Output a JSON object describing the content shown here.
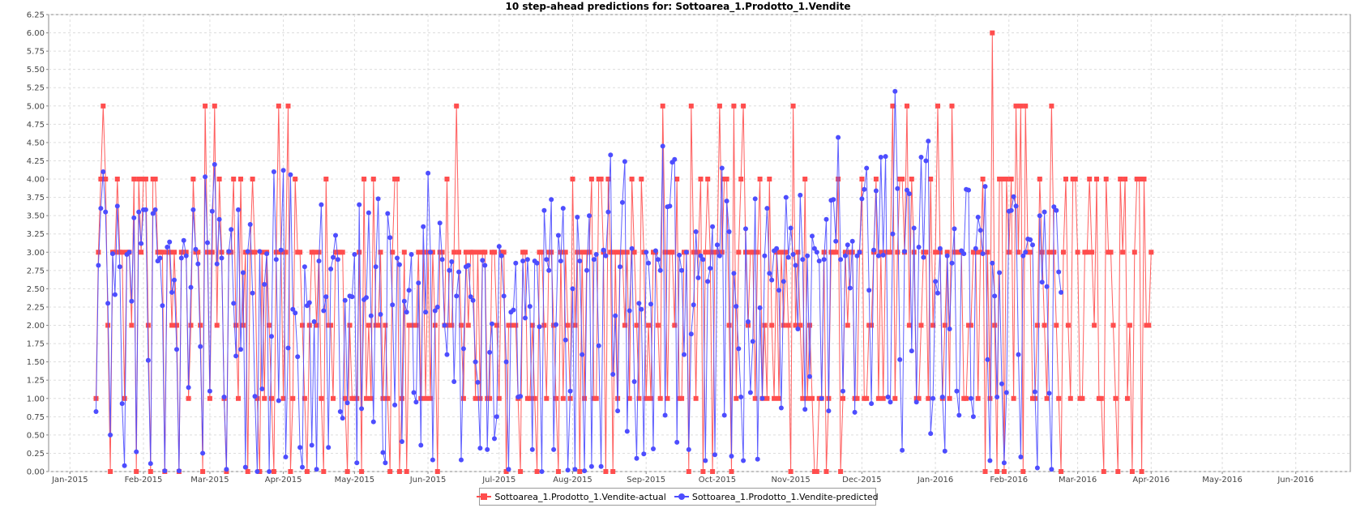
{
  "chart_data": {
    "type": "line",
    "title": "10 step-ahead predictions for: Sottoarea_1.Prodotto_1.Vendite",
    "xlabel": "",
    "ylabel": "",
    "x_start": "2015-01-12",
    "x_step_days": 1,
    "xlim": [
      "2014-12-23",
      "2016-06-24"
    ],
    "ylim": [
      0,
      6.25
    ],
    "y_ticks": [
      "0.00",
      "0.25",
      "0.50",
      "0.75",
      "1.00",
      "1.25",
      "1.50",
      "1.75",
      "2.00",
      "2.25",
      "2.50",
      "2.75",
      "3.00",
      "3.25",
      "3.50",
      "3.75",
      "4.00",
      "4.25",
      "4.50",
      "4.75",
      "5.00",
      "5.25",
      "5.50",
      "5.75",
      "6.00",
      "6.25"
    ],
    "x_ticks": [
      {
        "label": "Jan-2015",
        "date": "2015-01-01"
      },
      {
        "label": "Feb-2015",
        "date": "2015-02-01"
      },
      {
        "label": "Mar-2015",
        "date": "2015-03-01"
      },
      {
        "label": "Apr-2015",
        "date": "2015-04-01"
      },
      {
        "label": "May-2015",
        "date": "2015-05-01"
      },
      {
        "label": "Jun-2015",
        "date": "2015-06-01"
      },
      {
        "label": "Jul-2015",
        "date": "2015-07-01"
      },
      {
        "label": "Aug-2015",
        "date": "2015-08-01"
      },
      {
        "label": "Sep-2015",
        "date": "2015-09-01"
      },
      {
        "label": "Oct-2015",
        "date": "2015-10-01"
      },
      {
        "label": "Nov-2015",
        "date": "2015-11-01"
      },
      {
        "label": "Dec-2015",
        "date": "2015-12-01"
      },
      {
        "label": "Jan-2016",
        "date": "2016-01-01"
      },
      {
        "label": "Feb-2016",
        "date": "2016-02-01"
      },
      {
        "label": "Mar-2016",
        "date": "2016-03-01"
      },
      {
        "label": "Apr-2016",
        "date": "2016-04-01"
      },
      {
        "label": "May-2016",
        "date": "2016-05-01"
      },
      {
        "label": "Jun-2016",
        "date": "2016-06-01"
      }
    ],
    "grid": true,
    "legend_position": "bottom-center",
    "series": [
      {
        "name": "Sottoarea_1.Prodotto_1.Vendite-actual",
        "color": "#ff4d4d",
        "marker": "square",
        "values": [
          1,
          3,
          4,
          5,
          4,
          2,
          0,
          3,
          3,
          4,
          3,
          3,
          1,
          3,
          3,
          2,
          4,
          0,
          4,
          3,
          4,
          4,
          2,
          0,
          4,
          4,
          3,
          3,
          3,
          0,
          3,
          3,
          2,
          3,
          2,
          0,
          3,
          3,
          3,
          1,
          2,
          4,
          3,
          3,
          2,
          0,
          5,
          3,
          1,
          3,
          5,
          2,
          4,
          3,
          1,
          0,
          3,
          3,
          4,
          2,
          1,
          4,
          2,
          3,
          0,
          3,
          4,
          3,
          1,
          0,
          3,
          1,
          3,
          2,
          1,
          0,
          3,
          5,
          3,
          1,
          3,
          5,
          0,
          1,
          4,
          3,
          3,
          2,
          1,
          0,
          2,
          3,
          3,
          2,
          3,
          1,
          0,
          4,
          2,
          2,
          1,
          3,
          3,
          3,
          3,
          1,
          0,
          2,
          1,
          1,
          1,
          3,
          0,
          4,
          1,
          2,
          1,
          4,
          2,
          2,
          3,
          1,
          2,
          1,
          0,
          3,
          4,
          4,
          0,
          1,
          3,
          0,
          2,
          2,
          2,
          2,
          3,
          1,
          3,
          1,
          3,
          1,
          3,
          2,
          0,
          3,
          3,
          2,
          4,
          2,
          2,
          3,
          5,
          3,
          2,
          1,
          3,
          2,
          3,
          3,
          1,
          3,
          1,
          3,
          3,
          1,
          1,
          3,
          3,
          2,
          1,
          3,
          3,
          0,
          2,
          2,
          2,
          2,
          1,
          0,
          3,
          3,
          1,
          1,
          2,
          1,
          0,
          3,
          3,
          2,
          1,
          3,
          3,
          2,
          1,
          0,
          3,
          1,
          3,
          2,
          1,
          4,
          2,
          3,
          0,
          3,
          1,
          3,
          3,
          4,
          1,
          1,
          4,
          4,
          3,
          0,
          4,
          3,
          0,
          3,
          1,
          3,
          3,
          2,
          3,
          1,
          4,
          3,
          2,
          1,
          4,
          3,
          1,
          2,
          1,
          3,
          3,
          2,
          1,
          5,
          3,
          1,
          3,
          3,
          2,
          4,
          1,
          1,
          3,
          3,
          0,
          5,
          3,
          1,
          3,
          4,
          0,
          3,
          4,
          3,
          0,
          3,
          3,
          5,
          3,
          4,
          4,
          2,
          0,
          5,
          1,
          3,
          4,
          5,
          3,
          2,
          3,
          3,
          1,
          3,
          4,
          1,
          2,
          1,
          4,
          2,
          1,
          3,
          1,
          3,
          2,
          3,
          2,
          0,
          5,
          2,
          3,
          2,
          1,
          4,
          1,
          2,
          1,
          0,
          0,
          1,
          1,
          3,
          0,
          1,
          3,
          3,
          3,
          4,
          0,
          1,
          3,
          2,
          3,
          3,
          1,
          1,
          3,
          4,
          1,
          1,
          2,
          2,
          3,
          4,
          1,
          3,
          1,
          3,
          3,
          3,
          5,
          1,
          3,
          4,
          4,
          3,
          5,
          2,
          4,
          3,
          1,
          1,
          2,
          3,
          3,
          1,
          4,
          2,
          3,
          5,
          3,
          1,
          2,
          3,
          1,
          5,
          3,
          3,
          3,
          3,
          1,
          1,
          2,
          2,
          3,
          3,
          1,
          3,
          4,
          0,
          3,
          1,
          6,
          2,
          0,
          4,
          4,
          0,
          4,
          3,
          4,
          1,
          5,
          3,
          5,
          0,
          5,
          3,
          3,
          1,
          1,
          2,
          4,
          3,
          2,
          1,
          3,
          5,
          3,
          2,
          1,
          0,
          3,
          4,
          2,
          1,
          4,
          4,
          3,
          1,
          1,
          3,
          3,
          4,
          3,
          2,
          4,
          1,
          1,
          0,
          4,
          3,
          3,
          2,
          1,
          0,
          4,
          3,
          4,
          1,
          2,
          0,
          3,
          4,
          4,
          0,
          4,
          2,
          2,
          3
        ]
      },
      {
        "name": "Sottoarea_1.Prodotto_1.Vendite-predicted",
        "color": "#4d4dff",
        "marker": "circle",
        "values": [
          0.82,
          2.82,
          3.6,
          4.1,
          3.55,
          2.3,
          0.5,
          2.98,
          2.42,
          3.63,
          2.8,
          0.93,
          0.08,
          2.97,
          3.0,
          2.33,
          3.47,
          0.27,
          3.55,
          3.12,
          3.58,
          3.58,
          1.52,
          0.11,
          3.53,
          3.58,
          2.88,
          2.92,
          2.27,
          0.01,
          3.07,
          3.14,
          2.45,
          2.62,
          1.67,
          0.01,
          2.92,
          3.16,
          2.95,
          1.15,
          2.52,
          3.58,
          3.04,
          2.84,
          1.71,
          0.25,
          4.03,
          3.13,
          1.1,
          3.56,
          4.2,
          2.84,
          3.45,
          2.92,
          1.02,
          0.03,
          3.01,
          3.31,
          2.3,
          1.58,
          3.58,
          1.67,
          2.72,
          0.06,
          3.01,
          3.38,
          2.44,
          1.03,
          0.0,
          3.01,
          1.13,
          2.56,
          2.98,
          0.0,
          1.85,
          4.1,
          2.9,
          0.97,
          3.03,
          4.12,
          0.2,
          1.69,
          4.06,
          2.22,
          2.17,
          1.57,
          0.33,
          0.06,
          2.8,
          2.27,
          2.31,
          0.36,
          2.05,
          0.03,
          2.88,
          3.65,
          2.2,
          2.39,
          0.33,
          2.77,
          2.93,
          3.23,
          2.9,
          0.82,
          0.73,
          2.34,
          0.94,
          2.4,
          2.39,
          2.97,
          0.12,
          3.65,
          0.86,
          2.35,
          2.38,
          3.54,
          2.13,
          0.68,
          2.8,
          3.73,
          2.15,
          0.26,
          0.12,
          3.53,
          3.2,
          2.28,
          0.91,
          2.92,
          2.83,
          0.41,
          2.33,
          2.18,
          2.48,
          2.97,
          1.08,
          0.95,
          2.58,
          0.36,
          3.35,
          2.18,
          4.08,
          3.0,
          0.16,
          2.2,
          2.25,
          3.4,
          2.9,
          2.0,
          1.6,
          2.75,
          2.87,
          1.23,
          2.4,
          2.73,
          0.16,
          1.68,
          2.8,
          2.82,
          2.39,
          2.34,
          1.5,
          1.22,
          0.32,
          2.89,
          2.82,
          0.3,
          1.63,
          2.02,
          0.45,
          0.75,
          3.08,
          2.95,
          2.4,
          1.5,
          0.03,
          2.18,
          2.21,
          2.85,
          1.02,
          1.03,
          2.88,
          2.1,
          2.9,
          2.26,
          0.3,
          2.88,
          2.85,
          1.98,
          0.0,
          3.57,
          2.9,
          2.75,
          3.72,
          0.3,
          2.01,
          3.23,
          2.88,
          3.6,
          1.8,
          0.02,
          1.1,
          2.5,
          0.03,
          3.48,
          2.88,
          1.6,
          0.01,
          2.75,
          3.5,
          0.07,
          2.9,
          2.97,
          1.72,
          0.07,
          3.03,
          2.95,
          3.55,
          4.33,
          1.33,
          2.13,
          0.83,
          2.8,
          3.68,
          4.24,
          0.55,
          2.2,
          3.05,
          1.23,
          0.18,
          2.3,
          2.22,
          0.24,
          3.0,
          2.85,
          2.29,
          0.31,
          3.02,
          2.9,
          2.75,
          4.45,
          0.77,
          3.62,
          3.63,
          4.23,
          4.27,
          0.4,
          2.96,
          2.75,
          1.6,
          3.0,
          0.3,
          1.88,
          2.28,
          3.28,
          2.65,
          2.95,
          2.9,
          0.15,
          2.6,
          2.78,
          3.35,
          0.23,
          3.1,
          2.95,
          4.15,
          0.77,
          3.7,
          3.28,
          0.21,
          2.71,
          2.26,
          1.68,
          1.02,
          0.15,
          3.32,
          2.05,
          1.08,
          1.78,
          3.73,
          0.17,
          2.24,
          1.0,
          2.95,
          3.6,
          2.71,
          2.62,
          3.02,
          3.05,
          2.48,
          0.87,
          2.6,
          3.75,
          2.93,
          3.33,
          2.97,
          2.82,
          1.95,
          3.78,
          2.9,
          0.85,
          2.95,
          1.3,
          3.22,
          3.05,
          3.0,
          2.88,
          1.0,
          2.9,
          3.45,
          0.83,
          3.71,
          3.72,
          3.15,
          4.57,
          2.9,
          1.1,
          2.95,
          3.1,
          2.51,
          3.15,
          0.81,
          2.95,
          3.0,
          3.73,
          3.86,
          4.15,
          2.48,
          0.93,
          3.03,
          3.84,
          2.95,
          4.3,
          2.96,
          4.31,
          1.02,
          0.95,
          3.25,
          5.2,
          3.87,
          1.53,
          0.29,
          3.01,
          3.85,
          3.8,
          1.65,
          3.33,
          0.95,
          3.07,
          4.3,
          2.93,
          4.25,
          4.52,
          0.52,
          1.0,
          2.6,
          2.44,
          3.05,
          1.02,
          0.28,
          2.95,
          1.95,
          2.85,
          3.32,
          1.1,
          0.77,
          3.02,
          2.98,
          3.86,
          3.85,
          1.0,
          0.75,
          3.05,
          3.48,
          3.3,
          2.98,
          3.9,
          1.53,
          0.15,
          2.85,
          2.4,
          1.02,
          2.72,
          1.2,
          0.12,
          1.08,
          3.56,
          3.57,
          3.76,
          3.63,
          1.6,
          0.2,
          2.95,
          3.0,
          3.18,
          3.17,
          3.1,
          1.09,
          0.05,
          3.5,
          2.59,
          3.55,
          2.53,
          1.07,
          0.03,
          3.62,
          3.57,
          2.73,
          2.45
        ]
      }
    ]
  }
}
